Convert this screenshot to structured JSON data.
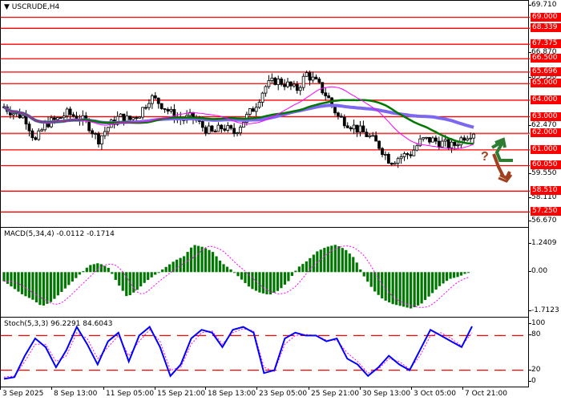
{
  "header": {
    "symbol_title": "USCRUDE,H4",
    "dropdown_icon": "triangle-down"
  },
  "price_axis": {
    "ticks": [
      "69.710",
      "66.870",
      "65.350",
      "62.470",
      "59.550",
      "58.110",
      "56.670"
    ],
    "levels": [
      "69.000",
      "68.339",
      "67.375",
      "66.500",
      "65.696",
      "65.000",
      "64.000",
      "63.000",
      "62.000",
      "61.000",
      "60.050",
      "58.510",
      "57.250"
    ],
    "level_color": "#ff0000",
    "current_price_line": "62.000"
  },
  "macd": {
    "label": "MACD(5,34,4) -0.0112 -0.1714",
    "axis": [
      "1.2409",
      "0.00",
      "-1.7123"
    ],
    "bar_color": "#007700",
    "signal_color": "#ff00ff"
  },
  "stoch": {
    "label": "Stoch(5,3,3) 96.2291 84.6043",
    "axis": [
      "100",
      "80",
      "20",
      "0"
    ],
    "main_color": "#0000ff",
    "signal_color": "#ff00ff",
    "level_color": "#ff0000"
  },
  "time_axis": [
    "3 Sep 2025",
    "8 Sep 13:00",
    "11 Sep 05:00",
    "15 Sep 21:00",
    "18 Sep 13:00",
    "23 Sep 05:00",
    "25 Sep 21:00",
    "30 Sep 13:00",
    "3 Oct 05:00",
    "7 Oct 21:00"
  ],
  "annotations": {
    "up_arrow_color": "#2e7d32",
    "down_arrow_color": "#a0401f",
    "question_mark": "?"
  },
  "chart_data": [
    {
      "type": "candlestick",
      "title": "USCRUDE,H4",
      "ylim": [
        56.2,
        70.0
      ],
      "y_ticks": [
        69.71,
        66.87,
        65.35,
        62.47,
        59.55,
        58.11,
        56.67
      ],
      "horizontal_levels": [
        69.0,
        68.339,
        67.375,
        66.5,
        65.696,
        65.0,
        64.0,
        63.0,
        62.0,
        61.0,
        60.05,
        58.51,
        57.25
      ],
      "x_labels": [
        "3 Sep 2025",
        "8 Sep 13:00",
        "11 Sep 05:00",
        "15 Sep 21:00",
        "18 Sep 13:00",
        "23 Sep 05:00",
        "25 Sep 21:00",
        "30 Sep 13:00",
        "3 Oct 05:00",
        "7 Oct 21:00"
      ],
      "approx_close_path": [
        63.6,
        63.2,
        63.0,
        61.5,
        62.6,
        62.8,
        63.2,
        63.0,
        62.6,
        61.6,
        62.4,
        63.0,
        62.8,
        63.2,
        64.2,
        63.8,
        63.2,
        62.8,
        63.0,
        62.4,
        62.0,
        62.4,
        62.0,
        62.8,
        63.6,
        64.8,
        65.2,
        65.0,
        64.6,
        65.6,
        65.0,
        64.2,
        63.0,
        62.6,
        62.2,
        61.8,
        61.2,
        60.3,
        60.6,
        60.8,
        61.6,
        61.6,
        61.4,
        61.2,
        61.8,
        62.1
      ],
      "series": [
        {
          "name": "MA fast (magenta)",
          "color": "#ff00ff"
        },
        {
          "name": "MA mid (green)",
          "color": "#007700"
        },
        {
          "name": "MA slow (violet)",
          "color": "#7b68ee"
        }
      ]
    },
    {
      "type": "bar",
      "title": "MACD(5,34,4) -0.0112 -0.1714",
      "ylim": [
        -1.7123,
        1.2409
      ],
      "values_approx": [
        -0.4,
        -0.7,
        -1.0,
        -1.2,
        -1.5,
        -1.3,
        -0.9,
        -0.5,
        -0.1,
        0.3,
        0.4,
        0.2,
        -0.5,
        -1.1,
        -0.8,
        -0.4,
        -0.1,
        0.2,
        0.5,
        0.7,
        1.2,
        1.1,
        0.9,
        0.4,
        0.1,
        -0.3,
        -0.7,
        -0.9,
        -1.0,
        -0.8,
        -0.4,
        0.2,
        0.5,
        0.9,
        1.1,
        1.2,
        1.0,
        0.6,
        -0.2,
        -0.8,
        -1.2,
        -1.4,
        -1.5,
        -1.6,
        -1.4,
        -1.0,
        -0.6,
        -0.3,
        -0.2,
        0.0
      ],
      "signal_color": "#ff00ff"
    },
    {
      "type": "line",
      "title": "Stoch(5,3,3) 96.2291 84.6043",
      "ylim": [
        0,
        100
      ],
      "levels": [
        80,
        20
      ],
      "main_values_approx": [
        5,
        8,
        45,
        75,
        60,
        25,
        55,
        95,
        65,
        30,
        70,
        85,
        35,
        80,
        95,
        60,
        10,
        30,
        75,
        90,
        85,
        60,
        90,
        95,
        85,
        15,
        20,
        75,
        85,
        80,
        80,
        70,
        75,
        40,
        30,
        10,
        25,
        45,
        30,
        20,
        55,
        90,
        80,
        70,
        60,
        96
      ],
      "signal_values_approx": [
        8,
        10,
        35,
        65,
        65,
        35,
        45,
        85,
        75,
        40,
        60,
        80,
        45,
        70,
        90,
        70,
        20,
        25,
        65,
        85,
        88,
        65,
        85,
        92,
        88,
        25,
        18,
        65,
        80,
        82,
        80,
        72,
        72,
        50,
        35,
        15,
        22,
        40,
        35,
        22,
        45,
        80,
        85,
        75,
        62,
        85
      ]
    }
  ]
}
